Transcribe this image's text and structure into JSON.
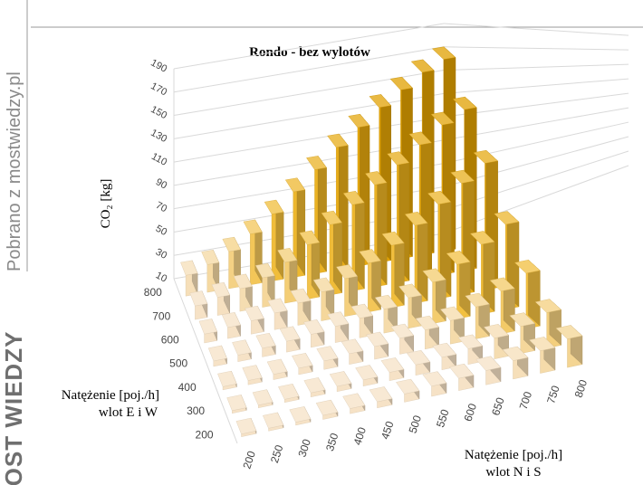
{
  "watermark": {
    "brand": "MOST WIEDZY",
    "source": "Pobrano z mostwiedzy.pl"
  },
  "chart_data": {
    "type": "bar3d",
    "title": "Rondo - bez wylotów",
    "zlabel": "CO₂ [kg]",
    "xlabel_line1": "Natężenie [poj./h]",
    "xlabel_line2": "wlot N i S",
    "ylabel_line1": "Natężenie [poj./h]",
    "ylabel_line2": "wlot E i W",
    "x_values": [
      200,
      250,
      300,
      350,
      400,
      450,
      500,
      550,
      600,
      650,
      700,
      750,
      800
    ],
    "y_values": [
      200,
      300,
      400,
      500,
      600,
      700,
      800
    ],
    "z_ticks": [
      10,
      30,
      50,
      70,
      90,
      110,
      130,
      150,
      170,
      190
    ],
    "zlim": [
      10,
      190
    ],
    "colors": {
      "low": "#f6e2c6",
      "mid": "#f2c040",
      "high": "#e0a000",
      "grid": "#d9d9d9"
    },
    "values": [
      [
        12,
        12,
        13,
        14,
        15,
        16,
        18,
        20,
        22,
        24,
        28,
        32,
        38
      ],
      [
        12,
        12,
        13,
        14,
        15,
        16,
        18,
        20,
        22,
        25,
        30,
        36,
        44
      ],
      [
        13,
        14,
        15,
        16,
        18,
        20,
        22,
        25,
        28,
        32,
        40,
        50,
        62
      ],
      [
        15,
        16,
        18,
        20,
        22,
        25,
        28,
        32,
        38,
        48,
        60,
        74,
        88
      ],
      [
        18,
        20,
        22,
        25,
        30,
        36,
        44,
        54,
        66,
        80,
        95,
        110,
        124
      ],
      [
        22,
        26,
        30,
        36,
        46,
        58,
        72,
        86,
        100,
        114,
        128,
        142,
        152
      ],
      [
        28,
        34,
        42,
        54,
        68,
        84,
        100,
        116,
        130,
        144,
        156,
        168,
        176
      ]
    ]
  }
}
